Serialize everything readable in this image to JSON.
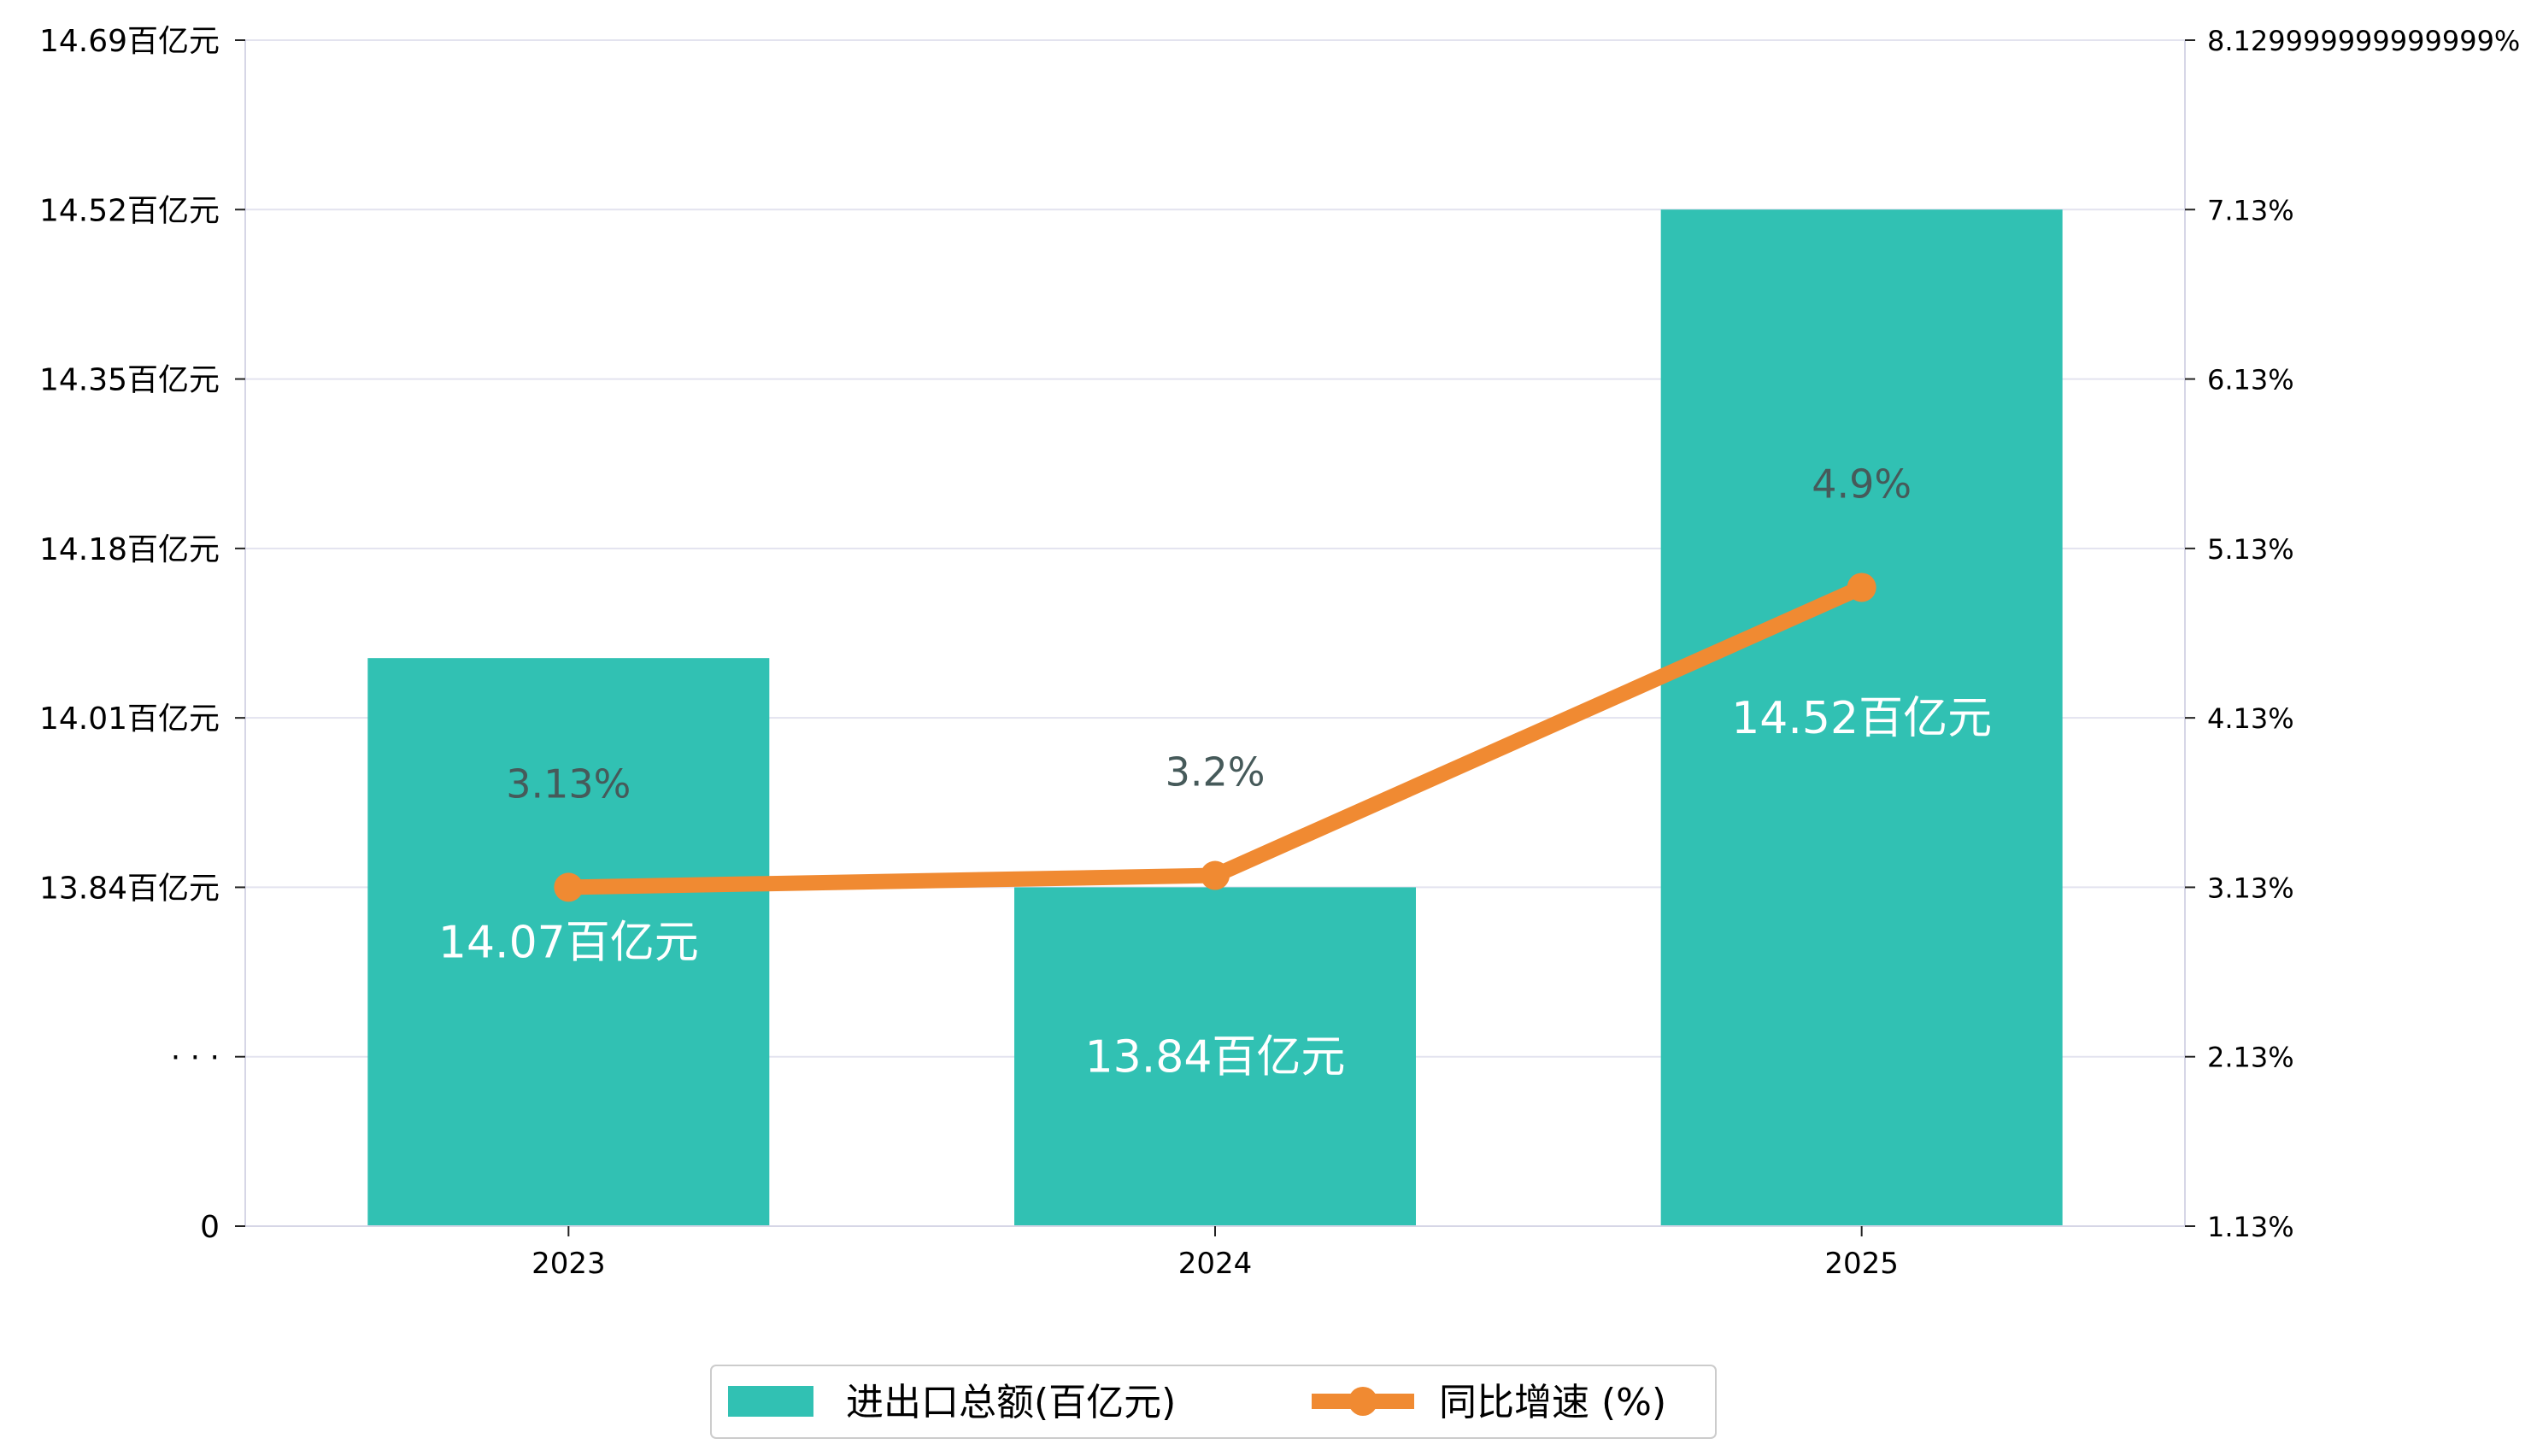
{
  "chart_data": {
    "type": "bar",
    "categories": [
      "2023",
      "2024",
      "2025"
    ],
    "series": [
      {
        "name": "进出口总额(百亿元)",
        "kind": "bar",
        "axis": "left",
        "values": [
          14.07,
          13.84,
          14.52
        ],
        "value_labels": [
          "14.07百亿元",
          "13.84百亿元",
          "14.52百亿元"
        ],
        "color": "#31c1b3"
      },
      {
        "name": "同比增速 (%)",
        "kind": "line",
        "axis": "right",
        "values": [
          3.13,
          3.2,
          4.9
        ],
        "value_labels": [
          "3.13%",
          "3.2%",
          "4.9%"
        ],
        "color": "#f08a32"
      }
    ],
    "left_axis": {
      "tick_values": [
        0,
        13.84,
        14.01,
        14.18,
        14.35,
        14.52,
        14.69
      ],
      "tick_labels": [
        "0",
        "· · ·",
        "13.84百亿元",
        "14.01百亿元",
        "14.18百亿元",
        "14.35百亿元",
        "14.52百亿元",
        "14.69百亿元"
      ],
      "broken": true
    },
    "right_axis": {
      "ylim": [
        1.13,
        8.13
      ],
      "tick_labels": [
        "1.13%",
        "2.13%",
        "3.13%",
        "4.13%",
        "5.13%",
        "6.13%",
        "7.13%",
        "8.129999999999999%"
      ]
    },
    "grid": true,
    "legend_position": "bottom-center"
  }
}
